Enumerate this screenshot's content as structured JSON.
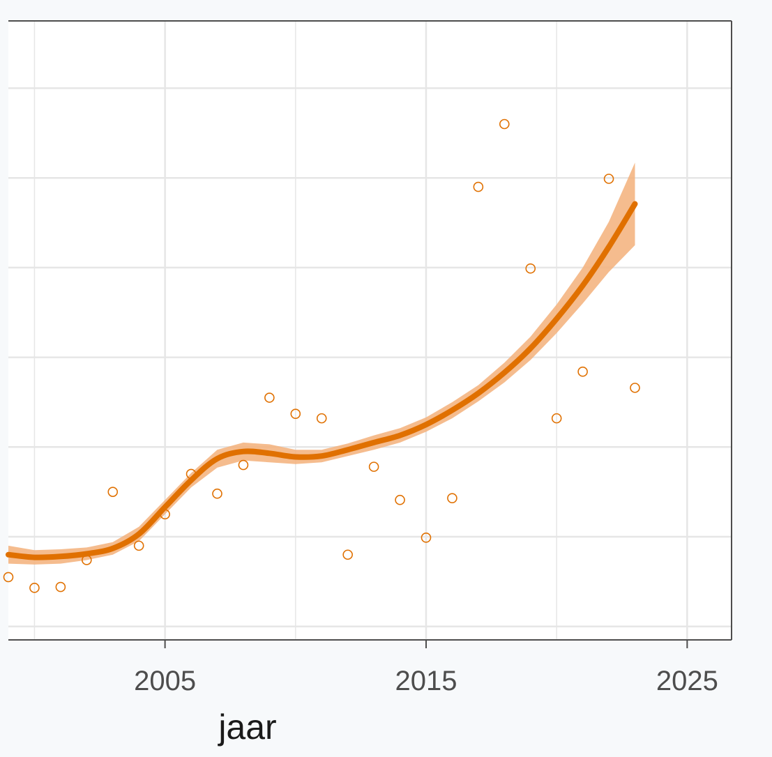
{
  "chart_data": {
    "type": "scatter",
    "xlabel": "jaar",
    "ylabel": "",
    "title": "",
    "xlim": [
      1999,
      2026.7
    ],
    "ylim": [
      0.1,
      7.0
    ],
    "x_ticks": [
      2005,
      2015,
      2025
    ],
    "x_tick_labels": [
      "2005",
      "2015",
      "2025"
    ],
    "y_gridlines": [
      0.25,
      1.25,
      2.25,
      3.25,
      4.25,
      5.25,
      6.25
    ],
    "grid": true,
    "legend": "none",
    "colors": {
      "line": "#e07000",
      "band": "#f3b07a",
      "points": "#e07000",
      "grid": "#e6e6e6",
      "panel_background": "#ffffff",
      "axis": "#4d4d4d"
    },
    "points": [
      {
        "x": 1999,
        "y": 0.8
      },
      {
        "x": 2000,
        "y": 0.68
      },
      {
        "x": 2001,
        "y": 0.69
      },
      {
        "x": 2002,
        "y": 0.99
      },
      {
        "x": 2003,
        "y": 1.75
      },
      {
        "x": 2004,
        "y": 1.15
      },
      {
        "x": 2005,
        "y": 1.5
      },
      {
        "x": 2006,
        "y": 1.95
      },
      {
        "x": 2007,
        "y": 1.73
      },
      {
        "x": 2008,
        "y": 2.05
      },
      {
        "x": 2009,
        "y": 2.8
      },
      {
        "x": 2010,
        "y": 2.62
      },
      {
        "x": 2011,
        "y": 2.57
      },
      {
        "x": 2012,
        "y": 1.05
      },
      {
        "x": 2013,
        "y": 2.03
      },
      {
        "x": 2014,
        "y": 1.66
      },
      {
        "x": 2015,
        "y": 1.24
      },
      {
        "x": 2016,
        "y": 1.68
      },
      {
        "x": 2017,
        "y": 5.15
      },
      {
        "x": 2018,
        "y": 5.85
      },
      {
        "x": 2019,
        "y": 4.24
      },
      {
        "x": 2020,
        "y": 2.57
      },
      {
        "x": 2021,
        "y": 3.09
      },
      {
        "x": 2022,
        "y": 5.24
      },
      {
        "x": 2023,
        "y": 2.91
      }
    ],
    "smooth": {
      "x": [
        1999,
        2000,
        2001,
        2002,
        2003,
        2004,
        2005,
        2006,
        2007,
        2008,
        2009,
        2010,
        2011,
        2012,
        2013,
        2014,
        2015,
        2016,
        2017,
        2018,
        2019,
        2020,
        2021,
        2022,
        2023
      ],
      "y": [
        1.05,
        1.02,
        1.03,
        1.06,
        1.12,
        1.28,
        1.58,
        1.88,
        2.12,
        2.2,
        2.18,
        2.14,
        2.15,
        2.22,
        2.3,
        2.38,
        2.5,
        2.66,
        2.85,
        3.08,
        3.35,
        3.68,
        4.05,
        4.48,
        4.96
      ],
      "lower": [
        0.95,
        0.94,
        0.95,
        0.99,
        1.05,
        1.2,
        1.5,
        1.8,
        2.02,
        2.1,
        2.08,
        2.06,
        2.08,
        2.15,
        2.22,
        2.3,
        2.42,
        2.57,
        2.76,
        2.97,
        3.22,
        3.52,
        3.85,
        4.2,
        4.5
      ],
      "upper": [
        1.15,
        1.1,
        1.11,
        1.13,
        1.19,
        1.36,
        1.66,
        1.96,
        2.22,
        2.3,
        2.28,
        2.22,
        2.22,
        2.29,
        2.38,
        2.46,
        2.58,
        2.75,
        2.94,
        3.19,
        3.48,
        3.84,
        4.25,
        4.76,
        5.42
      ]
    }
  }
}
